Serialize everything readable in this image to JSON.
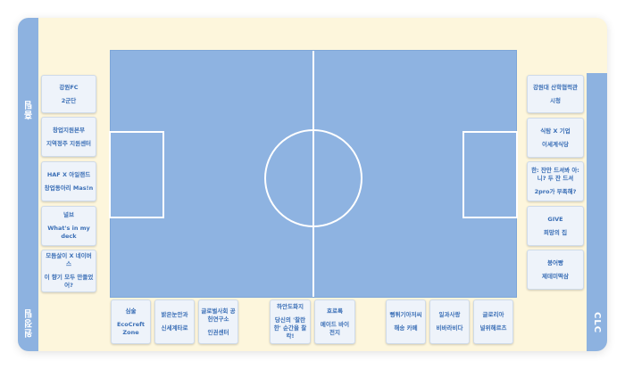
{
  "side_labels": {
    "left_top": "홈팀",
    "left_bottom": "원정팀",
    "right": "CLC"
  },
  "left_cards": [
    [
      "강원FC",
      "2군단"
    ],
    [
      "창업지원본부",
      "지역정주 지원센터"
    ],
    [
      "HAF X 아일랜드",
      "창업동아리 Mas!n"
    ],
    [
      "널브",
      "What's in my deck"
    ],
    [
      "모듬살이 X 네이버스",
      "이 향기 모두 만들었어?"
    ]
  ],
  "right_cards": [
    [
      "강원대 산학협력관",
      "시청"
    ],
    [
      "식탐 X 기업",
      "이세계식당"
    ],
    [
      "한: 잔만 드셔봐 아: 니? 두 잔 드셔",
      "2pro가 부족해?"
    ],
    [
      "GIVE",
      "희망의 집"
    ],
    [
      "붕어빵",
      "제데미떡삼"
    ]
  ],
  "bottom_cards": [
    [
      "심술",
      "EcoCreft Zone"
    ],
    [
      "밝은눈안과",
      "신세계타로"
    ],
    [
      "글로벌사회 공헌연구소",
      "인권센터"
    ],
    [
      "하안도화지",
      "당신의 '찰란한' 순간을 찰칵!"
    ],
    [
      "호로록",
      "메이드 바이 전지"
    ],
    [
      "뻥튀기아저씨",
      "해송 카페"
    ],
    [
      "일과사랑",
      "비바라비다"
    ],
    [
      "글로리아",
      "널위해르츠"
    ]
  ]
}
